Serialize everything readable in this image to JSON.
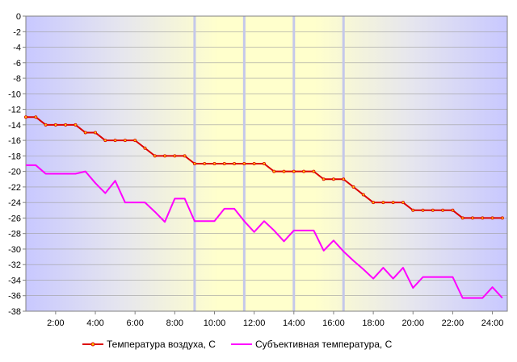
{
  "chart_data": {
    "type": "line",
    "title": "",
    "xlabel": "",
    "ylabel": "",
    "ylim": [
      -38,
      0
    ],
    "xlim": [
      0.5,
      24.75
    ],
    "y_ticks": [
      "0",
      "-2",
      "-4",
      "-6",
      "-8",
      "-10",
      "-12",
      "-14",
      "-16",
      "-18",
      "-20",
      "-22",
      "-24",
      "-26",
      "-28",
      "-30",
      "-32",
      "-34",
      "-36",
      "-38"
    ],
    "x_ticks": [
      "2:00",
      "4:00",
      "6:00",
      "8:00",
      "10:00",
      "12:00",
      "14:00",
      "16:00",
      "18:00",
      "20:00",
      "22:00",
      "24:00"
    ],
    "daylight_markers_hours": [
      9.0,
      11.5,
      14.0,
      16.5
    ],
    "grid": "horizontal",
    "legend": "bottom",
    "series": [
      {
        "name": "Температура воздуха, С",
        "color": "#dd0000",
        "points": [
          [
            0.5,
            -13
          ],
          [
            1.0,
            -13
          ],
          [
            1.5,
            -14
          ],
          [
            2.0,
            -14
          ],
          [
            2.5,
            -14
          ],
          [
            3.0,
            -14
          ],
          [
            3.5,
            -15
          ],
          [
            4.0,
            -15
          ],
          [
            4.5,
            -16
          ],
          [
            5.0,
            -16
          ],
          [
            5.5,
            -16
          ],
          [
            6.0,
            -16
          ],
          [
            6.5,
            -17
          ],
          [
            7.0,
            -18
          ],
          [
            7.5,
            -18
          ],
          [
            8.0,
            -18
          ],
          [
            8.5,
            -18
          ],
          [
            9.0,
            -19
          ],
          [
            9.5,
            -19
          ],
          [
            10.0,
            -19
          ],
          [
            10.5,
            -19
          ],
          [
            11.0,
            -19
          ],
          [
            11.5,
            -19
          ],
          [
            12.0,
            -19
          ],
          [
            12.5,
            -19
          ],
          [
            13.0,
            -20
          ],
          [
            13.5,
            -20
          ],
          [
            14.0,
            -20
          ],
          [
            14.5,
            -20
          ],
          [
            15.0,
            -20
          ],
          [
            15.5,
            -21
          ],
          [
            16.0,
            -21
          ],
          [
            16.5,
            -21
          ],
          [
            17.0,
            -22
          ],
          [
            17.5,
            -23
          ],
          [
            18.0,
            -24
          ],
          [
            18.5,
            -24
          ],
          [
            19.0,
            -24
          ],
          [
            19.5,
            -24
          ],
          [
            20.0,
            -25
          ],
          [
            20.5,
            -25
          ],
          [
            21.0,
            -25
          ],
          [
            21.5,
            -25
          ],
          [
            22.0,
            -25
          ],
          [
            22.5,
            -26
          ],
          [
            23.0,
            -26
          ],
          [
            23.5,
            -26
          ],
          [
            24.0,
            -26
          ],
          [
            24.5,
            -26
          ]
        ]
      },
      {
        "name": "Субъективная температура, С",
        "color": "#ff00ff",
        "points": [
          [
            0.5,
            -19.2
          ],
          [
            1.0,
            -19.2
          ],
          [
            1.5,
            -20.3
          ],
          [
            2.0,
            -20.3
          ],
          [
            2.5,
            -20.3
          ],
          [
            3.0,
            -20.3
          ],
          [
            3.5,
            -20
          ],
          [
            4.0,
            -21.5
          ],
          [
            4.5,
            -22.8
          ],
          [
            5.0,
            -21.2
          ],
          [
            5.5,
            -24
          ],
          [
            6.0,
            -24
          ],
          [
            6.5,
            -24
          ],
          [
            7.0,
            -25.2
          ],
          [
            7.5,
            -26.5
          ],
          [
            8.0,
            -23.5
          ],
          [
            8.5,
            -23.5
          ],
          [
            9.0,
            -26.4
          ],
          [
            9.5,
            -26.4
          ],
          [
            10.0,
            -26.4
          ],
          [
            10.5,
            -24.8
          ],
          [
            11.0,
            -24.8
          ],
          [
            11.5,
            -26.4
          ],
          [
            12.0,
            -27.8
          ],
          [
            12.5,
            -26.4
          ],
          [
            13.0,
            -27.6
          ],
          [
            13.5,
            -29
          ],
          [
            14.0,
            -27.6
          ],
          [
            14.5,
            -27.6
          ],
          [
            15.0,
            -27.6
          ],
          [
            15.5,
            -30.2
          ],
          [
            16.0,
            -28.9
          ],
          [
            16.5,
            -30.3
          ],
          [
            17.0,
            -31.5
          ],
          [
            17.5,
            -32.6
          ],
          [
            18.0,
            -33.8
          ],
          [
            18.5,
            -32.4
          ],
          [
            19.0,
            -33.8
          ],
          [
            19.5,
            -32.4
          ],
          [
            20.0,
            -35
          ],
          [
            20.5,
            -33.6
          ],
          [
            21.0,
            -33.6
          ],
          [
            21.5,
            -33.6
          ],
          [
            22.0,
            -33.6
          ],
          [
            22.5,
            -36.3
          ],
          [
            23.0,
            -36.3
          ],
          [
            23.5,
            -36.3
          ],
          [
            24.0,
            -34.9
          ],
          [
            24.5,
            -36.3
          ]
        ]
      }
    ]
  }
}
